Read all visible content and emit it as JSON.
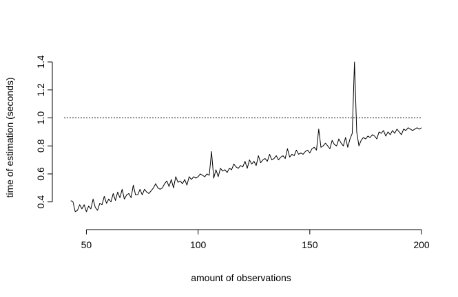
{
  "chart_data": {
    "type": "line",
    "title": "",
    "xlabel": "amount of observations",
    "ylabel": "time of estimation (seconds)",
    "xlim": [
      40,
      200
    ],
    "ylim": [
      0.31,
      1.42
    ],
    "x_ticks": [
      50,
      100,
      150,
      200
    ],
    "x_tick_labels": [
      "50",
      "100",
      "150",
      "200"
    ],
    "y_ticks": [
      0.4,
      0.6,
      0.8,
      1.0,
      1.2,
      1.4
    ],
    "y_tick_labels": [
      "0.4",
      "0.6",
      "0.8",
      "1.0",
      "1.2",
      "1.4"
    ],
    "reference_line": {
      "y": 1.0,
      "style": "dotted"
    },
    "grid": false,
    "legend": "none",
    "series": [
      {
        "x_start": 43,
        "x_step": 1,
        "values": [
          0.41,
          0.4,
          0.33,
          0.34,
          0.38,
          0.35,
          0.38,
          0.33,
          0.37,
          0.35,
          0.42,
          0.36,
          0.34,
          0.39,
          0.38,
          0.44,
          0.39,
          0.42,
          0.4,
          0.46,
          0.41,
          0.47,
          0.43,
          0.49,
          0.42,
          0.45,
          0.46,
          0.43,
          0.52,
          0.45,
          0.45,
          0.49,
          0.45,
          0.49,
          0.47,
          0.46,
          0.48,
          0.5,
          0.53,
          0.5,
          0.49,
          0.5,
          0.53,
          0.55,
          0.51,
          0.56,
          0.5,
          0.58,
          0.54,
          0.55,
          0.53,
          0.56,
          0.52,
          0.58,
          0.56,
          0.58,
          0.57,
          0.58,
          0.6,
          0.59,
          0.58,
          0.6,
          0.59,
          0.76,
          0.57,
          0.63,
          0.58,
          0.64,
          0.62,
          0.63,
          0.61,
          0.64,
          0.63,
          0.67,
          0.65,
          0.64,
          0.66,
          0.65,
          0.69,
          0.64,
          0.7,
          0.67,
          0.69,
          0.66,
          0.73,
          0.68,
          0.7,
          0.71,
          0.69,
          0.74,
          0.7,
          0.71,
          0.73,
          0.7,
          0.72,
          0.73,
          0.71,
          0.78,
          0.72,
          0.74,
          0.73,
          0.77,
          0.74,
          0.75,
          0.74,
          0.76,
          0.77,
          0.75,
          0.78,
          0.79,
          0.77,
          0.92,
          0.79,
          0.8,
          0.82,
          0.8,
          0.78,
          0.84,
          0.81,
          0.8,
          0.85,
          0.82,
          0.8,
          0.86,
          0.79,
          0.85,
          0.89,
          1.4,
          0.9,
          0.8,
          0.84,
          0.86,
          0.85,
          0.87,
          0.86,
          0.88,
          0.87,
          0.85,
          0.9,
          0.89,
          0.91,
          0.87,
          0.9,
          0.88,
          0.91,
          0.89,
          0.92,
          0.9,
          0.88,
          0.92,
          0.91,
          0.93,
          0.92,
          0.91,
          0.92,
          0.93,
          0.92,
          0.93
        ]
      }
    ]
  }
}
